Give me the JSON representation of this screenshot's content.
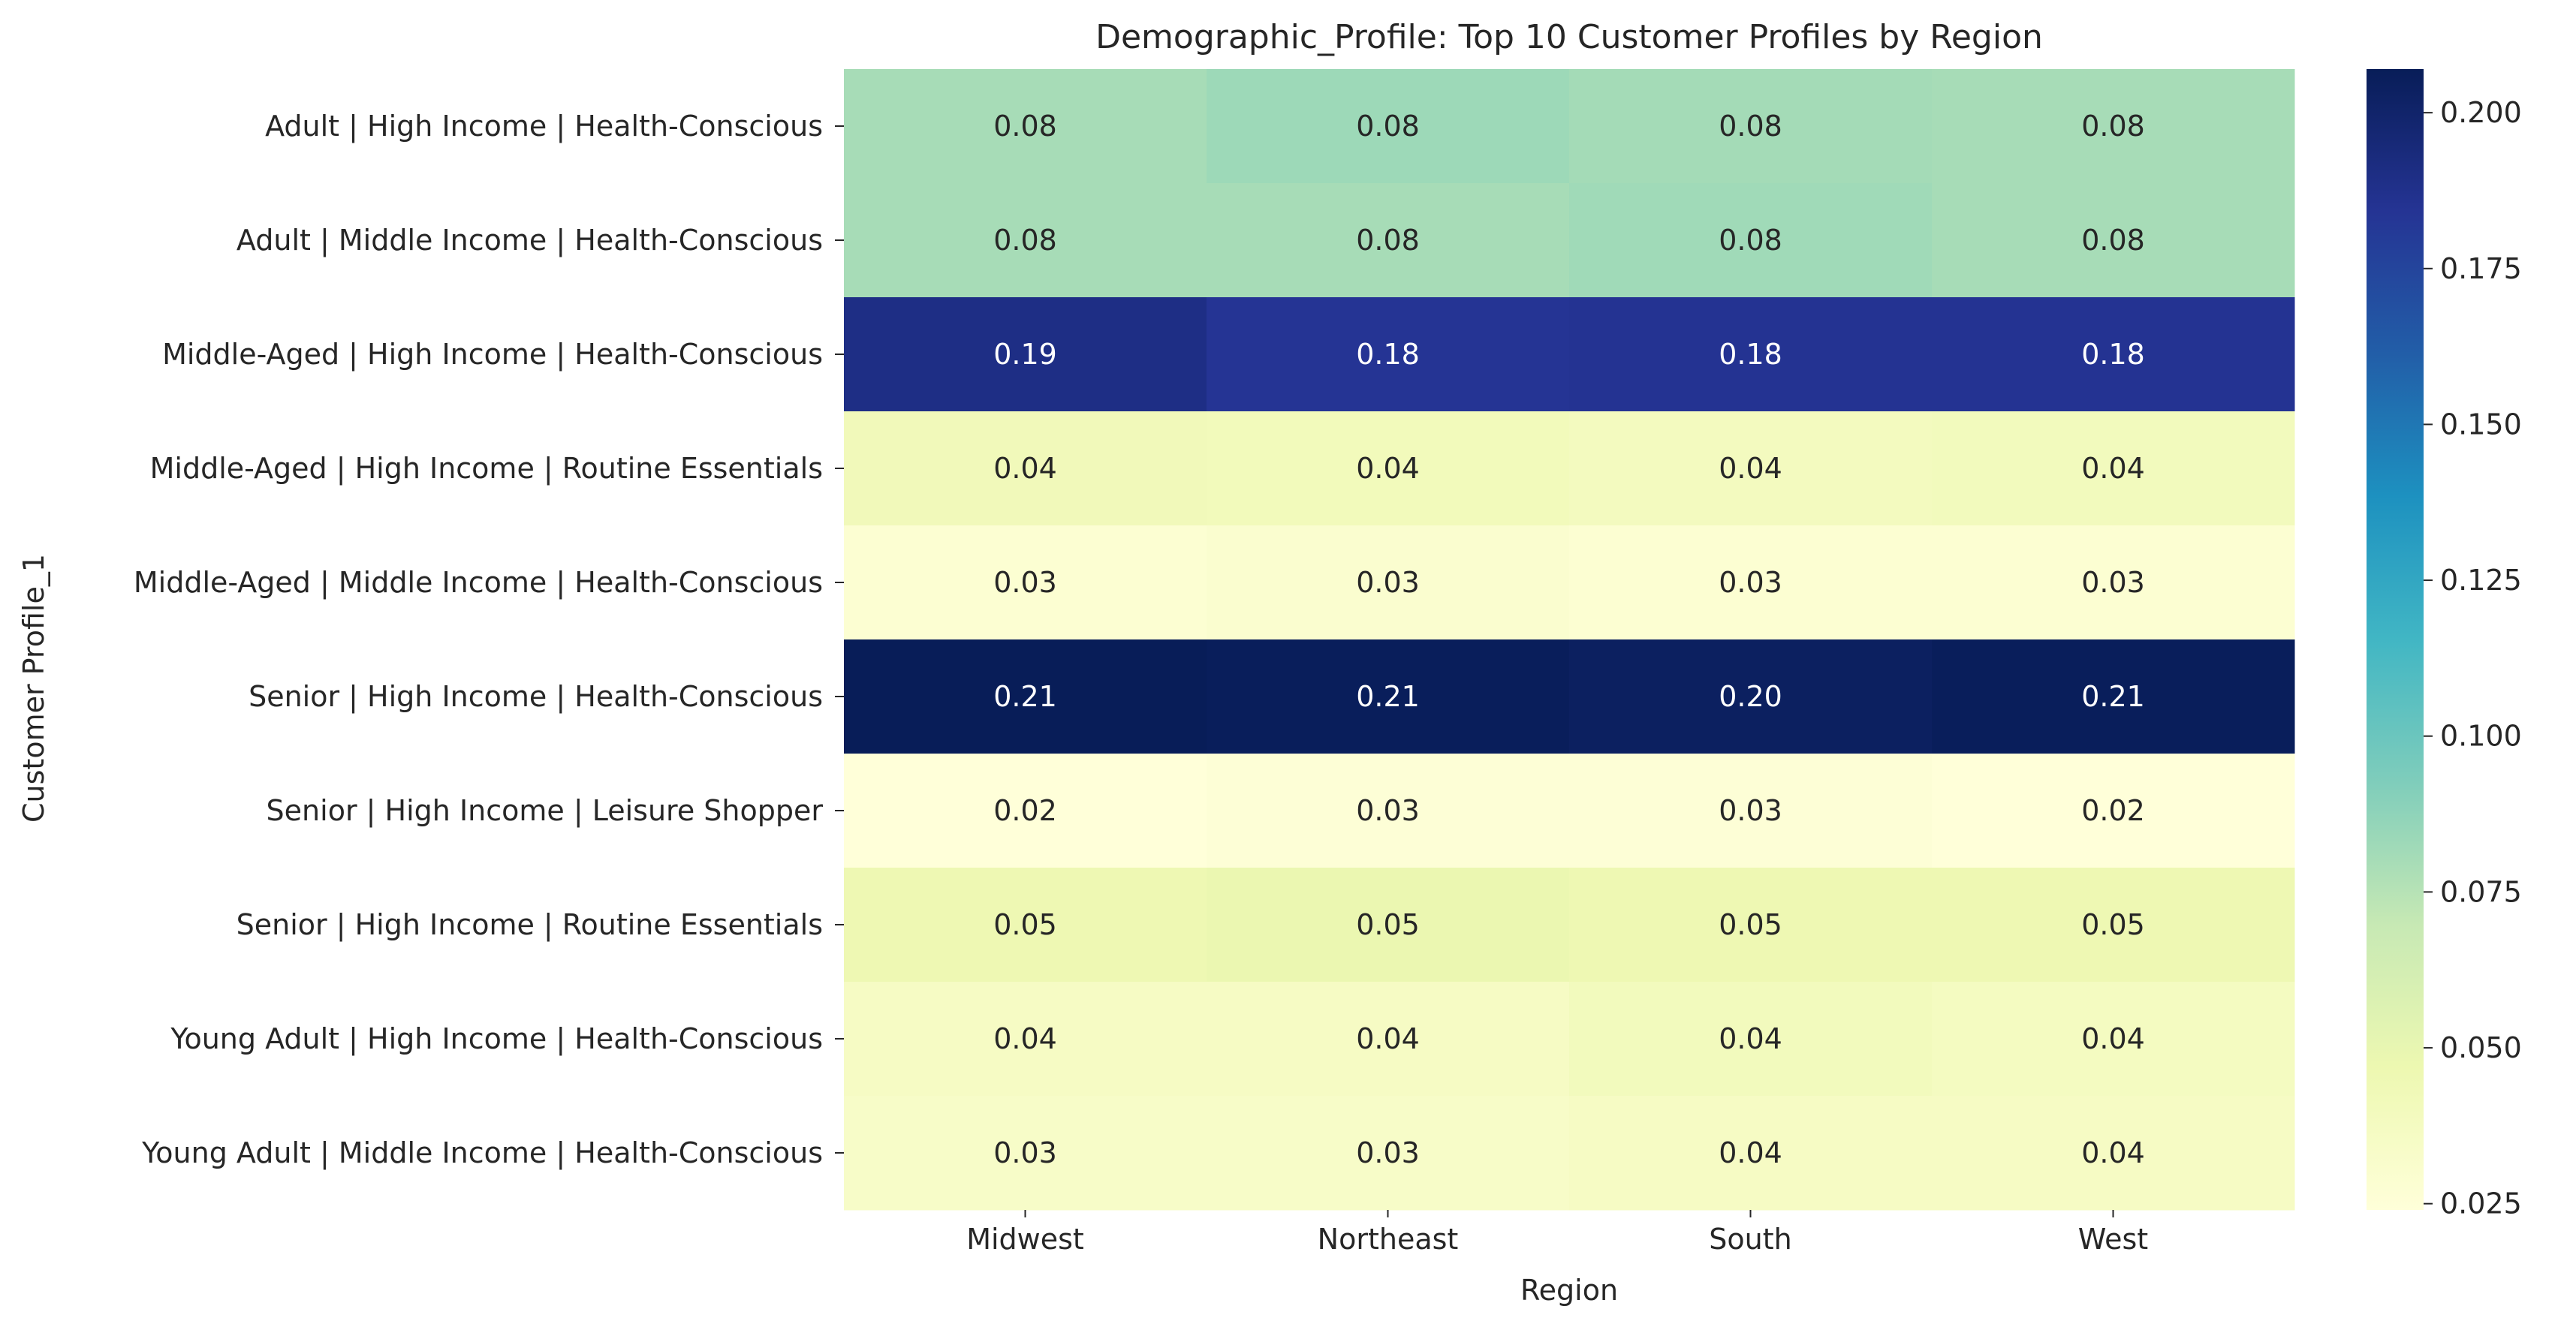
{
  "chart_data": {
    "type": "heatmap",
    "title": "Demographic_Profile: Top 10 Customer Profiles by Region",
    "xlabel": "Region",
    "ylabel": "Customer Profile_1",
    "x_categories": [
      "Midwest",
      "Northeast",
      "South",
      "West"
    ],
    "y_categories": [
      "Adult | High Income | Health-Conscious",
      "Adult | Middle Income | Health-Conscious",
      "Middle-Aged | High Income | Health-Conscious",
      "Middle-Aged | High Income | Routine Essentials",
      "Middle-Aged | Middle Income | Health-Conscious",
      "Senior | High Income | Health-Conscious",
      "Senior | High Income | Leisure Shopper",
      "Senior | High Income | Routine Essentials",
      "Young Adult | High Income | Health-Conscious",
      "Young Adult | Middle Income | Health-Conscious"
    ],
    "values": [
      [
        0.08,
        0.083,
        0.081,
        0.08
      ],
      [
        0.08,
        0.08,
        0.082,
        0.08
      ],
      [
        0.19,
        0.184,
        0.185,
        0.185
      ],
      [
        0.042,
        0.041,
        0.039,
        0.04
      ],
      [
        0.028,
        0.03,
        0.028,
        0.028
      ],
      [
        0.207,
        0.206,
        0.204,
        0.206
      ],
      [
        0.024,
        0.026,
        0.026,
        0.024
      ],
      [
        0.046,
        0.048,
        0.046,
        0.046
      ],
      [
        0.036,
        0.036,
        0.04,
        0.038
      ],
      [
        0.034,
        0.034,
        0.036,
        0.036
      ]
    ],
    "cell_labels": [
      [
        "0.08",
        "0.08",
        "0.08",
        "0.08"
      ],
      [
        "0.08",
        "0.08",
        "0.08",
        "0.08"
      ],
      [
        "0.19",
        "0.18",
        "0.18",
        "0.18"
      ],
      [
        "0.04",
        "0.04",
        "0.04",
        "0.04"
      ],
      [
        "0.03",
        "0.03",
        "0.03",
        "0.03"
      ],
      [
        "0.21",
        "0.21",
        "0.20",
        "0.21"
      ],
      [
        "0.02",
        "0.03",
        "0.03",
        "0.02"
      ],
      [
        "0.05",
        "0.05",
        "0.05",
        "0.05"
      ],
      [
        "0.04",
        "0.04",
        "0.04",
        "0.04"
      ],
      [
        "0.03",
        "0.03",
        "0.04",
        "0.04"
      ]
    ],
    "colorscale": "YlGnBu",
    "colorbar": {
      "range": [
        0.024,
        0.207
      ],
      "ticks": [
        0.025,
        0.05,
        0.075,
        0.1,
        0.125,
        0.15,
        0.175,
        0.2
      ],
      "tick_labels": [
        "0.025",
        "0.050",
        "0.075",
        "0.100",
        "0.125",
        "0.150",
        "0.175",
        "0.200"
      ]
    },
    "grid": false,
    "legend": "colorbar-right"
  }
}
